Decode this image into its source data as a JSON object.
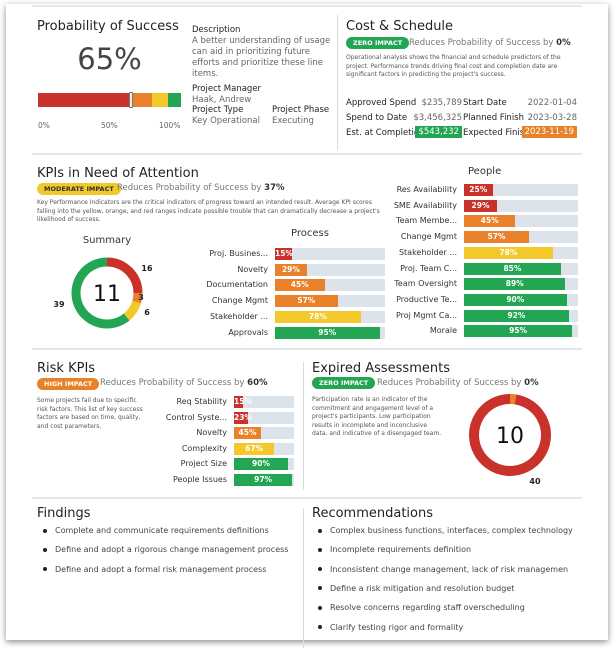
{
  "colors": {
    "red": "#c8322a",
    "orange": "#e8812a",
    "yellow": "#f2c82a",
    "green": "#22a653",
    "track": "#dde3ea"
  },
  "probability": {
    "title": "Probability of Success",
    "value_label": "65%",
    "value": 65,
    "segments": [
      {
        "color": "red",
        "to": 65
      },
      {
        "color": "orange",
        "to": 80
      },
      {
        "color": "yellow",
        "to": 91
      },
      {
        "color": "green",
        "to": 100
      }
    ],
    "ticks": [
      "0%",
      "50%",
      "100%"
    ]
  },
  "project": {
    "description_label": "Description",
    "description": "A better understanding of usage can aid in prioritizing future efforts and prioritize these line items.",
    "manager_label": "Project Manager",
    "manager": "Haak, Andrew",
    "type_label": "Project Type",
    "type": "Key Operational",
    "phase_label": "Project Phase",
    "phase": "Executing"
  },
  "cost": {
    "title": "Cost & Schedule",
    "badge": "ZERO IMPACT",
    "badge_color": "green",
    "reduce_text": "Reduces Probability of Success by",
    "reduce_value": "0%",
    "description": "Operational analysis shows the financial and schedule predictors of the project. Performance trends driving final cost and completion date are significant factors in predicting the project's success.",
    "rows": [
      {
        "label": "Approved Spend",
        "value": "$235,789",
        "label2": "Start Date",
        "value2": "2022-01-04"
      },
      {
        "label": "Spend to Date",
        "value": "$3,456,325",
        "label2": "Planned Finish",
        "value2": "2023-03-28"
      },
      {
        "label": "Est. at Completion",
        "value": "$543,232",
        "label2": "Expected Finish",
        "value2": "2023-11-19"
      }
    ]
  },
  "kpis": {
    "title": "KPIs in Need of Attention",
    "badge": "MODERATE IMPACT",
    "badge_color": "yellow",
    "reduce_text": "Reduces Probability of Success by",
    "reduce_value": "37%",
    "description": "Key Performance Indicators are the critical indicators of progress toward an intended result. Average KPI scores falling into the yellow, orange, and red ranges indicate possible trouble that can dramatically decrease a project's likelihood of success.",
    "summary": {
      "title": "Summary",
      "center": "11",
      "slices": [
        {
          "value": 16,
          "label": "16",
          "color": "red"
        },
        {
          "value": 3,
          "label": "3",
          "color": "orange"
        },
        {
          "value": 6,
          "label": "6",
          "color": "yellow"
        },
        {
          "value": 39,
          "label": "39",
          "color": "green"
        }
      ]
    },
    "process": {
      "title": "Process",
      "items": [
        {
          "label": "Proj. Busines...",
          "value": 15,
          "text": "15%",
          "color": "red"
        },
        {
          "label": "Novelty",
          "value": 29,
          "text": "29%",
          "color": "orange"
        },
        {
          "label": "Documentation",
          "value": 45,
          "text": "45%",
          "color": "orange"
        },
        {
          "label": "Change Mgmt",
          "value": 57,
          "text": "57%",
          "color": "orange"
        },
        {
          "label": "Stakeholder ...",
          "value": 78,
          "text": "78%",
          "color": "yellow"
        },
        {
          "label": "Approvals",
          "value": 95,
          "text": "95%",
          "color": "green"
        }
      ]
    },
    "people": {
      "title": "People",
      "items": [
        {
          "label": "Res Availability",
          "value": 25,
          "text": "25%",
          "color": "red"
        },
        {
          "label": "SME Availability",
          "value": 29,
          "text": "29%",
          "color": "red"
        },
        {
          "label": "Team Membe...",
          "value": 45,
          "text": "45%",
          "color": "orange"
        },
        {
          "label": "Change Mgmt",
          "value": 57,
          "text": "57%",
          "color": "orange"
        },
        {
          "label": "Stakeholder ...",
          "value": 78,
          "text": "78%",
          "color": "yellow"
        },
        {
          "label": "Proj. Team C...",
          "value": 85,
          "text": "85%",
          "color": "green"
        },
        {
          "label": "Team Oversight",
          "value": 89,
          "text": "89%",
          "color": "green"
        },
        {
          "label": "Productive Te...",
          "value": 90,
          "text": "90%",
          "color": "green"
        },
        {
          "label": "Proj Mgmt Ca...",
          "value": 92,
          "text": "92%",
          "color": "green"
        },
        {
          "label": "Morale",
          "value": 95,
          "text": "95%",
          "color": "green"
        }
      ]
    }
  },
  "risk": {
    "title": "Risk KPIs",
    "badge": "HIGH IMPACT",
    "badge_color": "orange",
    "reduce_text": "Reduces Probability of Success by",
    "reduce_value": "60%",
    "description": "Some projects fail due to specific risk factors. This list of key success factors are based on time, quality, and cost parameters.",
    "items": [
      {
        "label": "Req Stability",
        "value": 15,
        "text": "15%",
        "color": "red"
      },
      {
        "label": "Control Syste...",
        "value": 23,
        "text": "23%",
        "color": "red"
      },
      {
        "label": "Novelty",
        "value": 45,
        "text": "45%",
        "color": "orange"
      },
      {
        "label": "Complexity",
        "value": 67,
        "text": "67%",
        "color": "yellow"
      },
      {
        "label": "Project Size",
        "value": 90,
        "text": "90%",
        "color": "green"
      },
      {
        "label": "People Issues",
        "value": 97,
        "text": "97%",
        "color": "green"
      }
    ]
  },
  "expired": {
    "title": "Expired Assessments",
    "badge": "ZERO IMPACT",
    "badge_color": "green",
    "reduce_text": "Reduces Probability of Success by",
    "reduce_value": "0%",
    "description": "Participation rate is an indicator of the commitment and engagement level of a project's participants. Low participation results in incomplete and inconclusive data, and indicative of a disengaged team.",
    "center": "10",
    "slices": [
      {
        "value": 1,
        "label": "1",
        "color": "orange"
      },
      {
        "value": 40,
        "label": "40",
        "color": "red"
      }
    ]
  },
  "findings": {
    "title": "Findings",
    "items": [
      "Complete and communicate requirements definitions",
      "Define and adopt a rigorous change management process",
      "Define and adopt a formal risk management process"
    ]
  },
  "recommendations": {
    "title": "Recommendations",
    "items": [
      "Complex business functions, interfaces, complex technology",
      "Incomplete requirements definition",
      "Inconsistent change management, lack of risk managemen",
      "Define a risk mitigation and resolution budget",
      "Resolve concerns regarding staff overscheduling",
      "Clarify testing rigor and formality"
    ]
  }
}
